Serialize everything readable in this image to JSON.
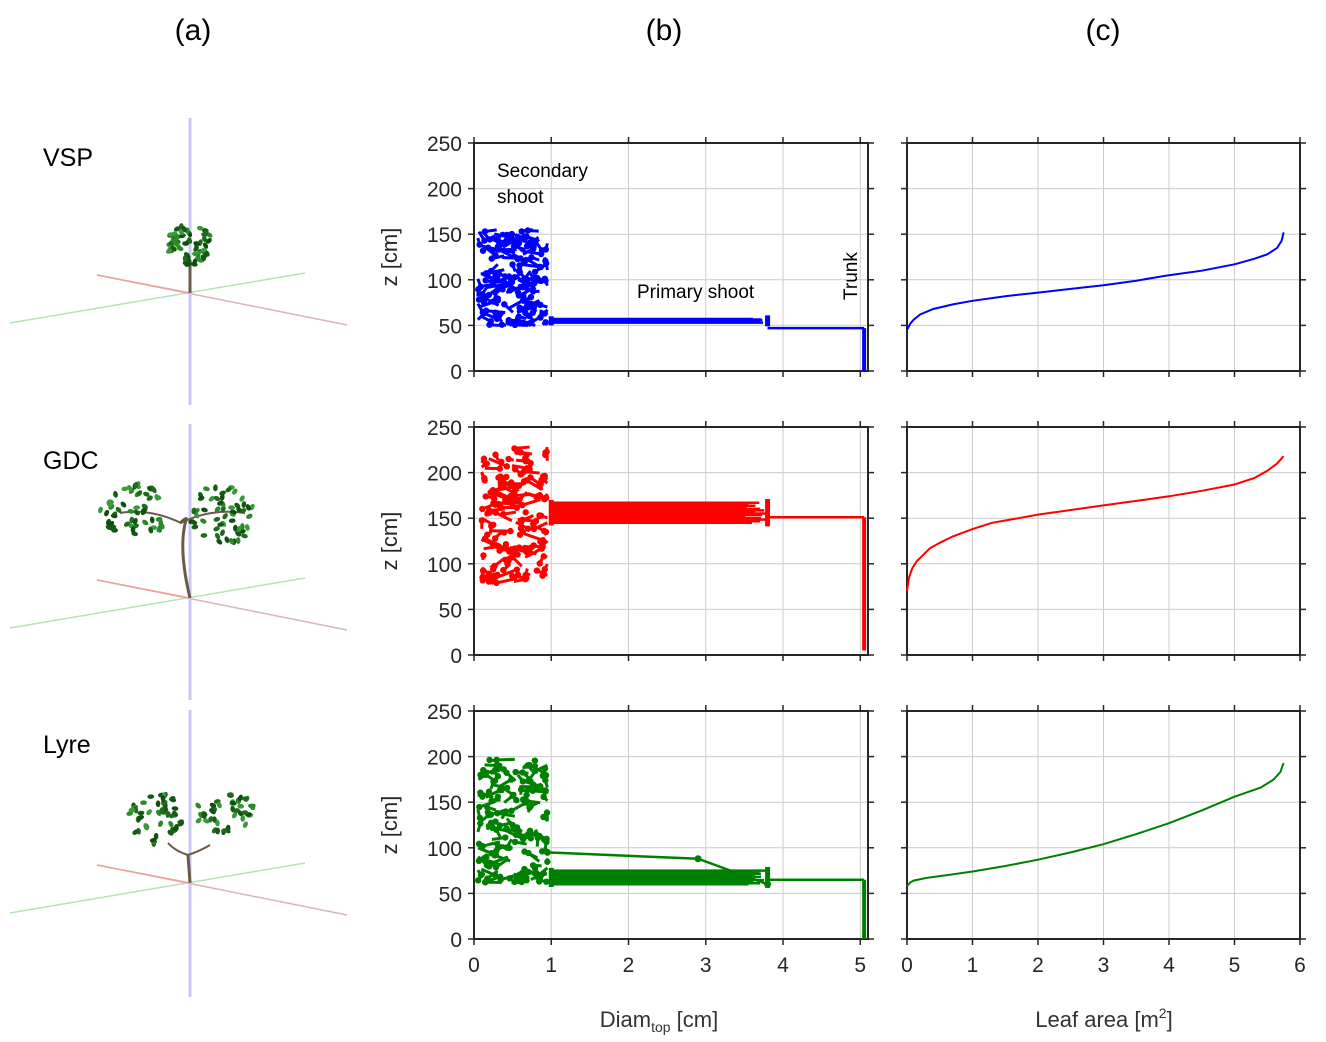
{
  "panel_labels": {
    "a": "(a)",
    "b": "(b)",
    "c": "(c)"
  },
  "rows": [
    {
      "name": "VSP",
      "color": "#0000ff"
    },
    {
      "name": "GDC",
      "color": "#ff0000"
    },
    {
      "name": "Lyre",
      "color": "#008000"
    }
  ],
  "annotations": {
    "secondary_line1": "Secondary",
    "secondary_line2": "shoot",
    "primary": "Primary shoot",
    "trunk": "Trunk"
  },
  "axes": {
    "ylabel": "z [cm]",
    "b_xlabel_main": "Diam",
    "b_xlabel_sub": "top",
    "b_xlabel_unit": " [cm]",
    "c_xlabel_main": "Leaf area [m",
    "c_xlabel_sup": "2",
    "c_xlabel_close": "]"
  },
  "chart_data": [
    {
      "type": "scatter",
      "panel": "b",
      "row": "VSP",
      "xlabel": "Diam_top [cm]",
      "ylabel": "z [cm]",
      "xlim": [
        0,
        5.1
      ],
      "ylim": [
        0,
        250
      ],
      "xticks": [
        0,
        1,
        2,
        3,
        4,
        5
      ],
      "yticks": [
        0,
        50,
        100,
        150,
        200,
        250
      ],
      "grid": true,
      "regions": {
        "secondary_shoot": {
          "x_range": [
            0.05,
            0.95
          ],
          "z_range": [
            50,
            155
          ]
        },
        "primary_shoot": {
          "x_range": [
            1.0,
            3.8
          ],
          "z": 55
        },
        "trunk_link": {
          "x_range": [
            3.8,
            5.05
          ],
          "z": 47
        },
        "trunk": {
          "x": 5.05,
          "z_range": [
            0,
            47
          ]
        }
      }
    },
    {
      "type": "scatter",
      "panel": "b",
      "row": "GDC",
      "xlabel": "Diam_top [cm]",
      "ylabel": "z [cm]",
      "xlim": [
        0,
        5.1
      ],
      "ylim": [
        0,
        250
      ],
      "xticks": [
        0,
        1,
        2,
        3,
        4,
        5
      ],
      "yticks": [
        0,
        50,
        100,
        150,
        200,
        250
      ],
      "grid": true,
      "regions": {
        "secondary_shoot": {
          "x_range": [
            0.1,
            0.95
          ],
          "z_range": [
            75,
            228
          ]
        },
        "primary_shoot": {
          "x_range": [
            1.0,
            3.8
          ],
          "z_range": [
            145,
            167
          ]
        },
        "trunk_link": {
          "x_range": [
            3.8,
            5.05
          ],
          "z": 151
        },
        "trunk": {
          "x": 5.05,
          "z_range": [
            5,
            151
          ]
        }
      }
    },
    {
      "type": "scatter",
      "panel": "b",
      "row": "Lyre",
      "xlabel": "Diam_top [cm]",
      "ylabel": "z [cm]",
      "xlim": [
        0,
        5.1
      ],
      "ylim": [
        0,
        250
      ],
      "xticks": [
        0,
        1,
        2,
        3,
        4,
        5
      ],
      "yticks": [
        0,
        50,
        100,
        150,
        200,
        250
      ],
      "grid": true,
      "regions": {
        "secondary_shoot": {
          "x_range": [
            0.05,
            0.95
          ],
          "z_range": [
            62,
            197
          ]
        },
        "primary_shoot": {
          "x_range": [
            1.0,
            3.8
          ],
          "z_range": [
            60,
            75
          ]
        },
        "upper_branch": {
          "x": [
            0.95,
            2.9,
            3.8
          ],
          "z": [
            95,
            88,
            60
          ]
        },
        "trunk_link": {
          "x_range": [
            3.8,
            5.05
          ],
          "z": 65
        },
        "trunk": {
          "x": 5.05,
          "z_range": [
            0,
            65
          ]
        }
      }
    },
    {
      "type": "line",
      "panel": "c",
      "row": "VSP",
      "xlabel": "Leaf area [m2]",
      "ylabel": "z [cm]",
      "xlim": [
        0,
        6
      ],
      "ylim": [
        0,
        250
      ],
      "xticks": [
        0,
        1,
        2,
        3,
        4,
        5,
        6
      ],
      "yticks": [
        0,
        50,
        100,
        150,
        200,
        250
      ],
      "grid": true,
      "x": [
        0,
        0.05,
        0.1,
        0.2,
        0.4,
        0.7,
        1,
        1.5,
        2,
        2.5,
        3,
        3.5,
        4,
        4.5,
        5,
        5.3,
        5.5,
        5.65,
        5.72,
        5.75
      ],
      "y": [
        45,
        52,
        56,
        62,
        68,
        73,
        77,
        82,
        86,
        90,
        94,
        99,
        105,
        110,
        117,
        123,
        128,
        135,
        143,
        152
      ]
    },
    {
      "type": "line",
      "panel": "c",
      "row": "GDC",
      "xlabel": "Leaf area [m2]",
      "ylabel": "z [cm]",
      "xlim": [
        0,
        6
      ],
      "ylim": [
        0,
        250
      ],
      "xticks": [
        0,
        1,
        2,
        3,
        4,
        5,
        6
      ],
      "yticks": [
        0,
        50,
        100,
        150,
        200,
        250
      ],
      "grid": true,
      "x": [
        0,
        0.03,
        0.08,
        0.15,
        0.25,
        0.35,
        0.5,
        0.7,
        1,
        1.3,
        1.7,
        2,
        2.5,
        3,
        3.5,
        4,
        4.5,
        5,
        5.3,
        5.5,
        5.65,
        5.75
      ],
      "y": [
        70,
        85,
        95,
        103,
        110,
        117,
        123,
        130,
        138,
        145,
        150,
        154,
        159,
        164,
        169,
        174,
        180,
        187,
        194,
        202,
        210,
        218
      ]
    },
    {
      "type": "line",
      "panel": "c",
      "row": "Lyre",
      "xlabel": "Leaf area [m2]",
      "ylabel": "z [cm]",
      "xlim": [
        0,
        6
      ],
      "ylim": [
        0,
        250
      ],
      "xticks": [
        0,
        1,
        2,
        3,
        4,
        5,
        6
      ],
      "yticks": [
        0,
        50,
        100,
        150,
        200,
        250
      ],
      "grid": true,
      "x": [
        0,
        0.05,
        0.1,
        0.3,
        0.6,
        1,
        1.5,
        2,
        2.5,
        3,
        3.5,
        4,
        4.5,
        5,
        5.4,
        5.6,
        5.7,
        5.75
      ],
      "y": [
        58,
        62,
        64,
        67,
        70,
        74,
        80,
        87,
        95,
        104,
        115,
        127,
        141,
        156,
        166,
        175,
        183,
        193
      ]
    }
  ]
}
